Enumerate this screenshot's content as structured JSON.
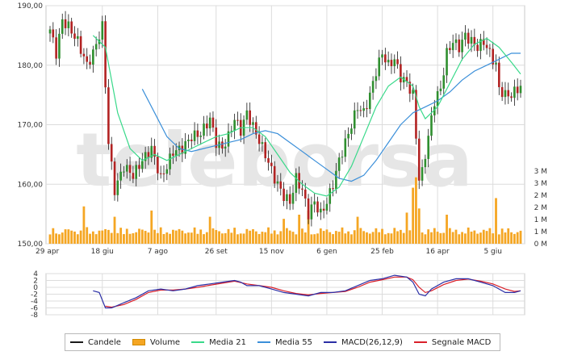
{
  "colors": {
    "candles": "#1a1a1a",
    "candle_up": "#2f8f2f",
    "candle_down": "#b22222",
    "volume": "#f5a623",
    "media21": "#39d98a",
    "media55": "#3b8fd9",
    "macd": "#2b2fa6",
    "signal": "#d9202a",
    "grid": "#dcdcdc",
    "watermark": "#e6e6e6"
  },
  "watermark": "teleborsa",
  "chart_data": {
    "type": "line",
    "x_tick_labels": [
      "29 apr",
      "18 giu",
      "7 ago",
      "26 set",
      "15 nov",
      "6 gen",
      "25 feb",
      "16 apr",
      "5 giu"
    ],
    "price_axis": {
      "ticks": [
        "190,00",
        "180,00",
        "170,00",
        "160,00",
        "150,00"
      ],
      "ylim": [
        150,
        190
      ],
      "grid": true
    },
    "volume_axis": {
      "ticks": [
        "3 M",
        "3 M",
        "2 M",
        "2 M",
        "1 M",
        "1 M",
        "0 M"
      ],
      "ylim": [
        0,
        3.5
      ]
    },
    "macd_axis": {
      "ticks": [
        "4",
        "2",
        "0",
        "-2",
        "-4",
        "-6",
        "-8"
      ],
      "ylim": [
        -8,
        4
      ]
    },
    "price_anchors": [
      {
        "x": 0,
        "y": 186
      },
      {
        "x": 2,
        "y": 182
      },
      {
        "x": 4,
        "y": 187.5
      },
      {
        "x": 6,
        "y": 186.5
      },
      {
        "x": 9,
        "y": 184
      },
      {
        "x": 12,
        "y": 180
      },
      {
        "x": 14,
        "y": 182
      },
      {
        "x": 17,
        "y": 186.5
      },
      {
        "x": 19,
        "y": 167
      },
      {
        "x": 21,
        "y": 159
      },
      {
        "x": 24,
        "y": 163
      },
      {
        "x": 27,
        "y": 161.5
      },
      {
        "x": 30,
        "y": 164
      },
      {
        "x": 33,
        "y": 166
      },
      {
        "x": 36,
        "y": 161
      },
      {
        "x": 38,
        "y": 163
      },
      {
        "x": 40,
        "y": 165.5
      },
      {
        "x": 43,
        "y": 166
      },
      {
        "x": 46,
        "y": 168
      },
      {
        "x": 49,
        "y": 168.5
      },
      {
        "x": 52,
        "y": 171
      },
      {
        "x": 54,
        "y": 167
      },
      {
        "x": 56,
        "y": 166
      },
      {
        "x": 58,
        "y": 168
      },
      {
        "x": 60,
        "y": 171
      },
      {
        "x": 62,
        "y": 169
      },
      {
        "x": 64,
        "y": 172
      },
      {
        "x": 67,
        "y": 168.5
      },
      {
        "x": 70,
        "y": 165
      },
      {
        "x": 73,
        "y": 161
      },
      {
        "x": 76,
        "y": 158
      },
      {
        "x": 78,
        "y": 157
      },
      {
        "x": 80,
        "y": 161
      },
      {
        "x": 82,
        "y": 159
      },
      {
        "x": 84,
        "y": 155
      },
      {
        "x": 86,
        "y": 157
      },
      {
        "x": 88,
        "y": 155
      },
      {
        "x": 90,
        "y": 157
      },
      {
        "x": 92,
        "y": 160
      },
      {
        "x": 94,
        "y": 164
      },
      {
        "x": 96,
        "y": 167
      },
      {
        "x": 98,
        "y": 170
      },
      {
        "x": 100,
        "y": 173
      },
      {
        "x": 102,
        "y": 172
      },
      {
        "x": 104,
        "y": 175
      },
      {
        "x": 106,
        "y": 179
      },
      {
        "x": 108,
        "y": 182
      },
      {
        "x": 110,
        "y": 180
      },
      {
        "x": 112,
        "y": 181
      },
      {
        "x": 114,
        "y": 178
      },
      {
        "x": 116,
        "y": 177
      },
      {
        "x": 118,
        "y": 175
      },
      {
        "x": 119,
        "y": 168
      },
      {
        "x": 120,
        "y": 161
      },
      {
        "x": 121,
        "y": 162
      },
      {
        "x": 123,
        "y": 168
      },
      {
        "x": 125,
        "y": 174
      },
      {
        "x": 127,
        "y": 176
      },
      {
        "x": 129,
        "y": 182
      },
      {
        "x": 131,
        "y": 184
      },
      {
        "x": 133,
        "y": 183
      },
      {
        "x": 135,
        "y": 185
      },
      {
        "x": 137,
        "y": 184
      },
      {
        "x": 139,
        "y": 183
      },
      {
        "x": 141,
        "y": 184
      },
      {
        "x": 143,
        "y": 182
      },
      {
        "x": 145,
        "y": 180
      },
      {
        "x": 146,
        "y": 176
      },
      {
        "x": 148,
        "y": 175
      },
      {
        "x": 150,
        "y": 175
      },
      {
        "x": 152,
        "y": 176
      },
      {
        "x": 153,
        "y": 176.5
      }
    ],
    "media21_anchors": [
      {
        "x": 14,
        "y": 185
      },
      {
        "x": 18,
        "y": 183
      },
      {
        "x": 22,
        "y": 172
      },
      {
        "x": 26,
        "y": 166
      },
      {
        "x": 30,
        "y": 164
      },
      {
        "x": 34,
        "y": 165
      },
      {
        "x": 38,
        "y": 164
      },
      {
        "x": 42,
        "y": 165
      },
      {
        "x": 46,
        "y": 166
      },
      {
        "x": 50,
        "y": 167
      },
      {
        "x": 54,
        "y": 168
      },
      {
        "x": 58,
        "y": 168.5
      },
      {
        "x": 62,
        "y": 169.5
      },
      {
        "x": 66,
        "y": 169.5
      },
      {
        "x": 70,
        "y": 168
      },
      {
        "x": 74,
        "y": 165
      },
      {
        "x": 78,
        "y": 162
      },
      {
        "x": 82,
        "y": 160
      },
      {
        "x": 86,
        "y": 158.5
      },
      {
        "x": 90,
        "y": 158
      },
      {
        "x": 94,
        "y": 159.5
      },
      {
        "x": 98,
        "y": 163
      },
      {
        "x": 102,
        "y": 168
      },
      {
        "x": 106,
        "y": 173
      },
      {
        "x": 110,
        "y": 176.5
      },
      {
        "x": 114,
        "y": 178
      },
      {
        "x": 118,
        "y": 176.5
      },
      {
        "x": 120,
        "y": 173
      },
      {
        "x": 122,
        "y": 171
      },
      {
        "x": 126,
        "y": 173
      },
      {
        "x": 130,
        "y": 177
      },
      {
        "x": 134,
        "y": 181
      },
      {
        "x": 138,
        "y": 183.5
      },
      {
        "x": 142,
        "y": 184.5
      },
      {
        "x": 146,
        "y": 183
      },
      {
        "x": 150,
        "y": 180.5
      },
      {
        "x": 153,
        "y": 178.5
      }
    ],
    "media55_anchors": [
      {
        "x": 30,
        "y": 176
      },
      {
        "x": 34,
        "y": 172
      },
      {
        "x": 38,
        "y": 168
      },
      {
        "x": 42,
        "y": 166
      },
      {
        "x": 46,
        "y": 165.5
      },
      {
        "x": 50,
        "y": 166
      },
      {
        "x": 54,
        "y": 166.5
      },
      {
        "x": 58,
        "y": 167
      },
      {
        "x": 62,
        "y": 167.5
      },
      {
        "x": 66,
        "y": 168.5
      },
      {
        "x": 70,
        "y": 169
      },
      {
        "x": 74,
        "y": 168.5
      },
      {
        "x": 78,
        "y": 167
      },
      {
        "x": 82,
        "y": 165.5
      },
      {
        "x": 86,
        "y": 164
      },
      {
        "x": 90,
        "y": 162.5
      },
      {
        "x": 94,
        "y": 161
      },
      {
        "x": 98,
        "y": 160.5
      },
      {
        "x": 102,
        "y": 161.5
      },
      {
        "x": 106,
        "y": 164
      },
      {
        "x": 110,
        "y": 167
      },
      {
        "x": 114,
        "y": 170
      },
      {
        "x": 118,
        "y": 172
      },
      {
        "x": 122,
        "y": 173
      },
      {
        "x": 126,
        "y": 174
      },
      {
        "x": 130,
        "y": 175.5
      },
      {
        "x": 134,
        "y": 177.5
      },
      {
        "x": 138,
        "y": 179
      },
      {
        "x": 142,
        "y": 180
      },
      {
        "x": 146,
        "y": 181
      },
      {
        "x": 150,
        "y": 182
      },
      {
        "x": 153,
        "y": 182
      }
    ],
    "macd_anchors": [
      {
        "x": 14,
        "y": -1
      },
      {
        "x": 16,
        "y": -1.5
      },
      {
        "x": 18,
        "y": -6
      },
      {
        "x": 20,
        "y": -6
      },
      {
        "x": 24,
        "y": -4.5
      },
      {
        "x": 28,
        "y": -3
      },
      {
        "x": 32,
        "y": -1
      },
      {
        "x": 36,
        "y": -0.5
      },
      {
        "x": 40,
        "y": -1
      },
      {
        "x": 44,
        "y": -0.5
      },
      {
        "x": 48,
        "y": 0.5
      },
      {
        "x": 52,
        "y": 1
      },
      {
        "x": 56,
        "y": 1.5
      },
      {
        "x": 60,
        "y": 2
      },
      {
        "x": 62,
        "y": 1.5
      },
      {
        "x": 64,
        "y": 0.5
      },
      {
        "x": 68,
        "y": 0.5
      },
      {
        "x": 72,
        "y": -0.5
      },
      {
        "x": 76,
        "y": -1.5
      },
      {
        "x": 80,
        "y": -2
      },
      {
        "x": 84,
        "y": -2.5
      },
      {
        "x": 88,
        "y": -1.5
      },
      {
        "x": 92,
        "y": -1.5
      },
      {
        "x": 96,
        "y": -1
      },
      {
        "x": 100,
        "y": 0.5
      },
      {
        "x": 104,
        "y": 2
      },
      {
        "x": 108,
        "y": 2.5
      },
      {
        "x": 112,
        "y": 3.5
      },
      {
        "x": 116,
        "y": 3
      },
      {
        "x": 118,
        "y": 1.5
      },
      {
        "x": 120,
        "y": -2
      },
      {
        "x": 122,
        "y": -2.5
      },
      {
        "x": 124,
        "y": -0.5
      },
      {
        "x": 128,
        "y": 1.5
      },
      {
        "x": 132,
        "y": 2.5
      },
      {
        "x": 136,
        "y": 2.5
      },
      {
        "x": 140,
        "y": 1.5
      },
      {
        "x": 144,
        "y": 0.5
      },
      {
        "x": 148,
        "y": -1.5
      },
      {
        "x": 151,
        "y": -1.5
      },
      {
        "x": 153,
        "y": -1
      }
    ],
    "signal_anchors": [
      {
        "x": 18,
        "y": -5.5
      },
      {
        "x": 20,
        "y": -5.8
      },
      {
        "x": 24,
        "y": -5
      },
      {
        "x": 28,
        "y": -3.5
      },
      {
        "x": 32,
        "y": -1.5
      },
      {
        "x": 36,
        "y": -0.8
      },
      {
        "x": 40,
        "y": -0.8
      },
      {
        "x": 44,
        "y": -0.5
      },
      {
        "x": 48,
        "y": 0
      },
      {
        "x": 52,
        "y": 0.6
      },
      {
        "x": 56,
        "y": 1.2
      },
      {
        "x": 60,
        "y": 1.8
      },
      {
        "x": 64,
        "y": 1
      },
      {
        "x": 68,
        "y": 0.5
      },
      {
        "x": 72,
        "y": 0
      },
      {
        "x": 76,
        "y": -1
      },
      {
        "x": 80,
        "y": -1.8
      },
      {
        "x": 84,
        "y": -2.2
      },
      {
        "x": 88,
        "y": -1.8
      },
      {
        "x": 92,
        "y": -1.5
      },
      {
        "x": 96,
        "y": -1.2
      },
      {
        "x": 100,
        "y": 0
      },
      {
        "x": 104,
        "y": 1.5
      },
      {
        "x": 108,
        "y": 2.2
      },
      {
        "x": 112,
        "y": 3
      },
      {
        "x": 116,
        "y": 3
      },
      {
        "x": 118,
        "y": 2.2
      },
      {
        "x": 120,
        "y": 0
      },
      {
        "x": 122,
        "y": -1.5
      },
      {
        "x": 124,
        "y": -1
      },
      {
        "x": 128,
        "y": 0.8
      },
      {
        "x": 132,
        "y": 2
      },
      {
        "x": 136,
        "y": 2.4
      },
      {
        "x": 140,
        "y": 1.8
      },
      {
        "x": 144,
        "y": 1
      },
      {
        "x": 148,
        "y": -0.5
      },
      {
        "x": 151,
        "y": -1.2
      },
      {
        "x": 153,
        "y": -1
      }
    ],
    "volume_spikes": [
      {
        "x": 11,
        "y": 1.8
      },
      {
        "x": 21,
        "y": 1.3
      },
      {
        "x": 33,
        "y": 1.6
      },
      {
        "x": 52,
        "y": 1.3
      },
      {
        "x": 76,
        "y": 1.2
      },
      {
        "x": 81,
        "y": 1.4
      },
      {
        "x": 84,
        "y": 1.6
      },
      {
        "x": 100,
        "y": 1.3
      },
      {
        "x": 116,
        "y": 1.5
      },
      {
        "x": 118,
        "y": 2.7
      },
      {
        "x": 119,
        "y": 3.2
      },
      {
        "x": 120,
        "y": 1.7
      },
      {
        "x": 129,
        "y": 1.4
      },
      {
        "x": 145,
        "y": 2.2
      }
    ]
  },
  "legend": [
    {
      "label": "Candele",
      "color": "#1a1a1a",
      "kind": "line"
    },
    {
      "label": "Volume",
      "color": "#f5a623",
      "kind": "box"
    },
    {
      "label": "Media 21",
      "color": "#39d98a",
      "kind": "line"
    },
    {
      "label": "Media 55",
      "color": "#3b8fd9",
      "kind": "line"
    },
    {
      "label": "MACD(26,12,9)",
      "color": "#2b2fa6",
      "kind": "line"
    },
    {
      "label": "Segnale MACD",
      "color": "#d9202a",
      "kind": "line"
    }
  ]
}
